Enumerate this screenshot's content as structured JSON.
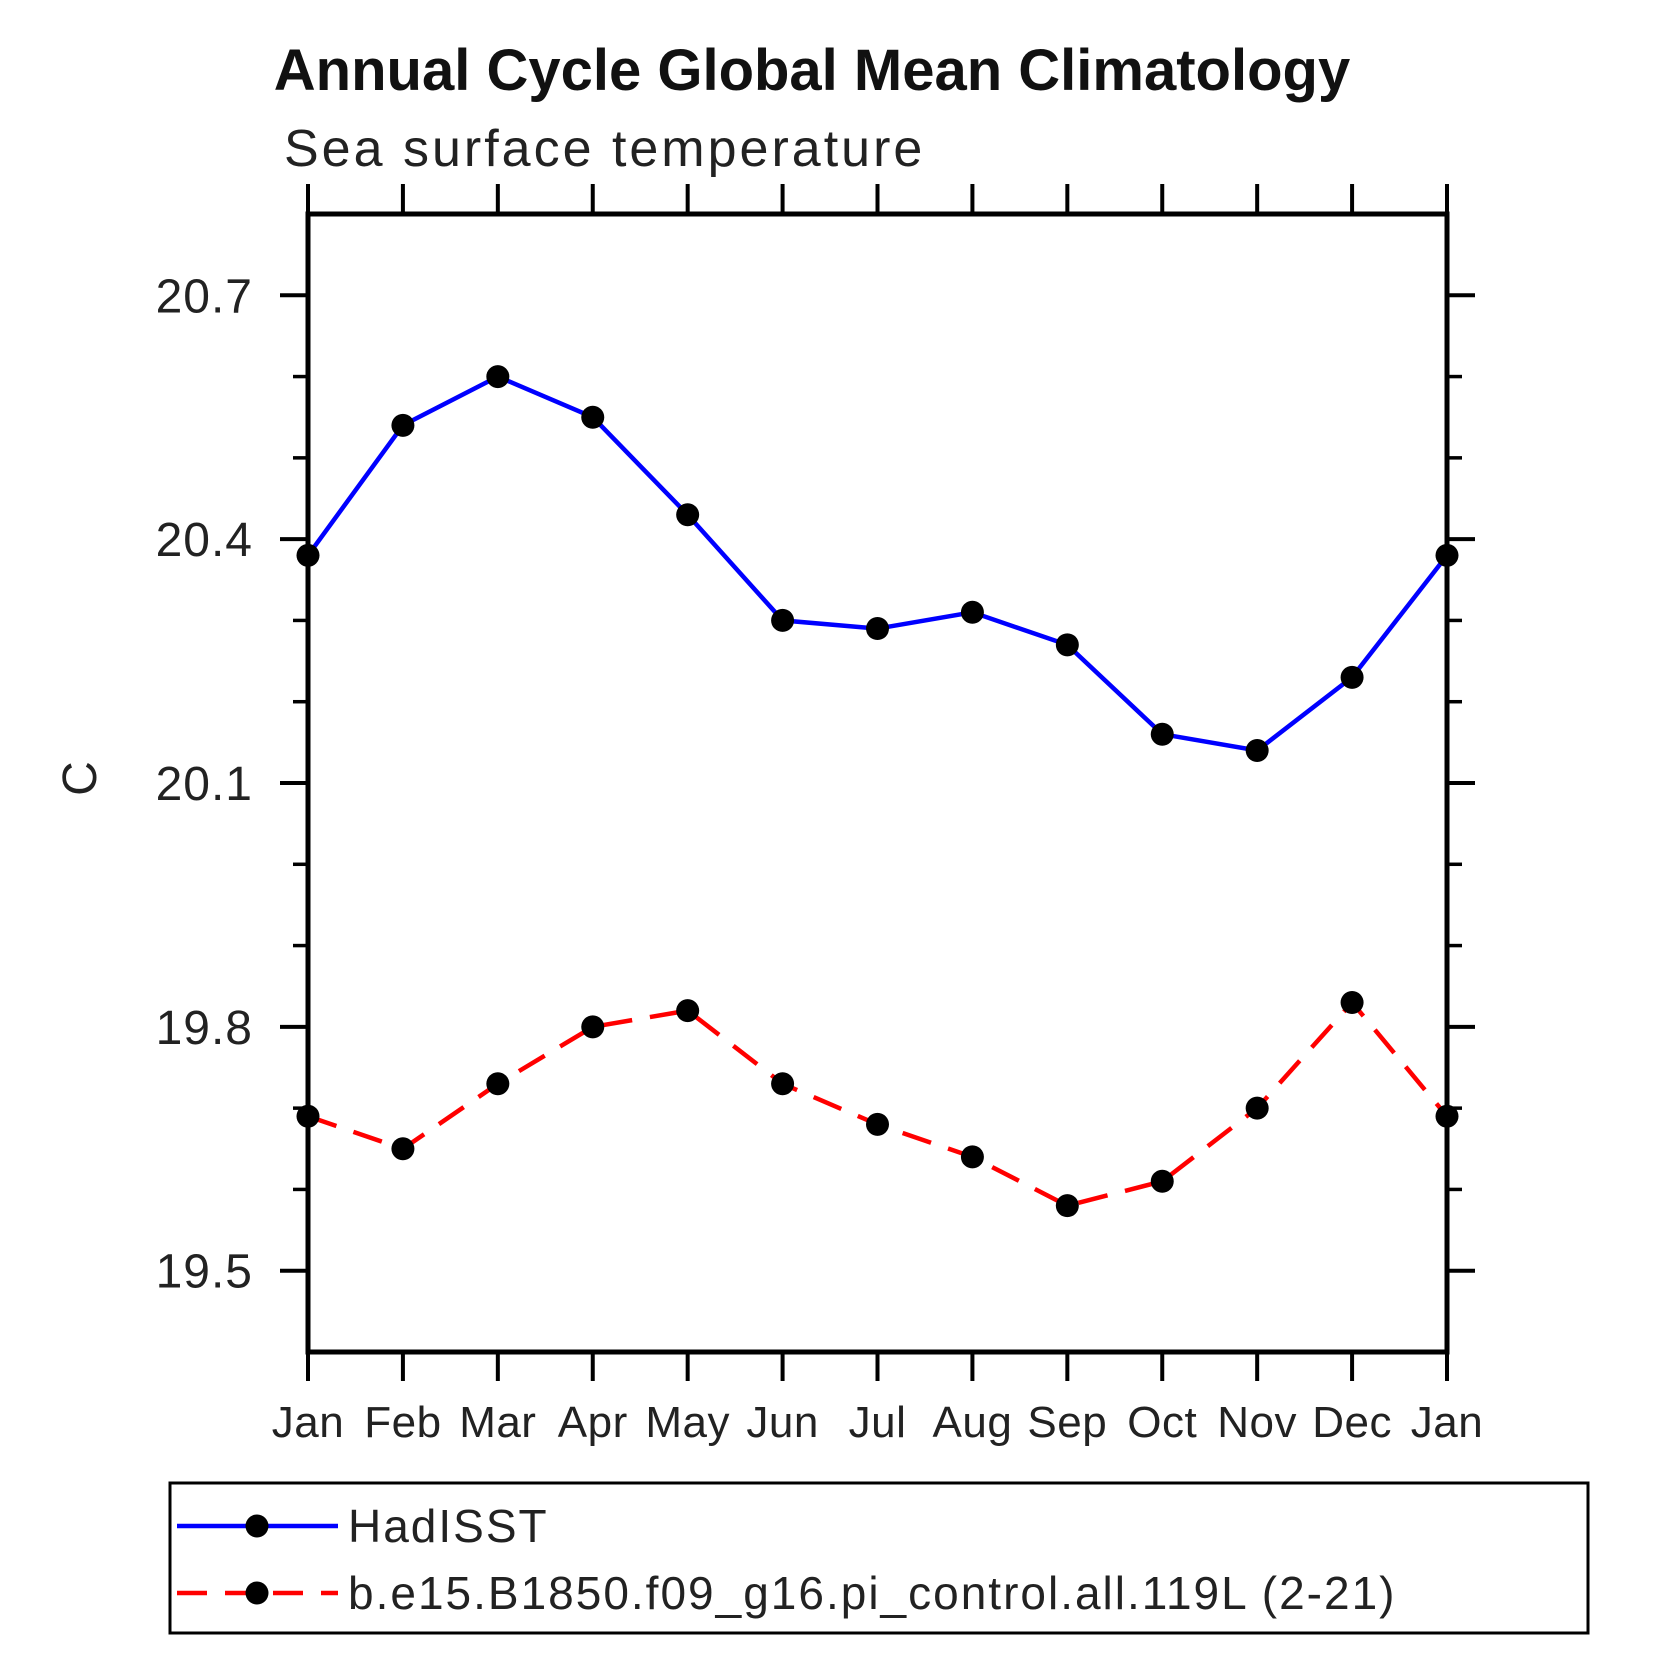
{
  "chart_data": {
    "type": "line",
    "title": "Annual Cycle Global Mean Climatology",
    "subtitle": "Sea surface temperature",
    "ylabel": "C",
    "categories": [
      "Jan",
      "Feb",
      "Mar",
      "Apr",
      "May",
      "Jun",
      "Jul",
      "Aug",
      "Sep",
      "Oct",
      "Nov",
      "Dec",
      "Jan"
    ],
    "ylim": [
      19.4,
      20.8
    ],
    "y_major_ticks": [
      19.5,
      19.8,
      20.1,
      20.4,
      20.7
    ],
    "y_major_tick_labels": [
      "19.5",
      "19.8",
      "20.1",
      "20.4",
      "20.7"
    ],
    "y_minor_ticks": [
      19.6,
      19.7,
      19.9,
      20.0,
      20.2,
      20.3,
      20.5,
      20.6
    ],
    "grid": false,
    "legend_position": "bottom-left",
    "axis_color": "#000000",
    "marker_color": "#000000",
    "series": [
      {
        "name": "HadISST",
        "color": "#0000ff",
        "line_style": "solid",
        "marker": "filled-circle",
        "values": [
          20.38,
          20.54,
          20.6,
          20.55,
          20.43,
          20.3,
          20.29,
          20.31,
          20.27,
          20.16,
          20.14,
          20.23,
          20.38
        ]
      },
      {
        "name": "b.e15.B1850.f09_g16.pi_control.all.119L (2-21)",
        "color": "#ff0000",
        "line_style": "dashed",
        "marker": "filled-circle",
        "values": [
          19.69,
          19.65,
          19.73,
          19.8,
          19.82,
          19.73,
          19.68,
          19.64,
          19.58,
          19.61,
          19.7,
          19.83,
          19.69
        ]
      }
    ]
  }
}
